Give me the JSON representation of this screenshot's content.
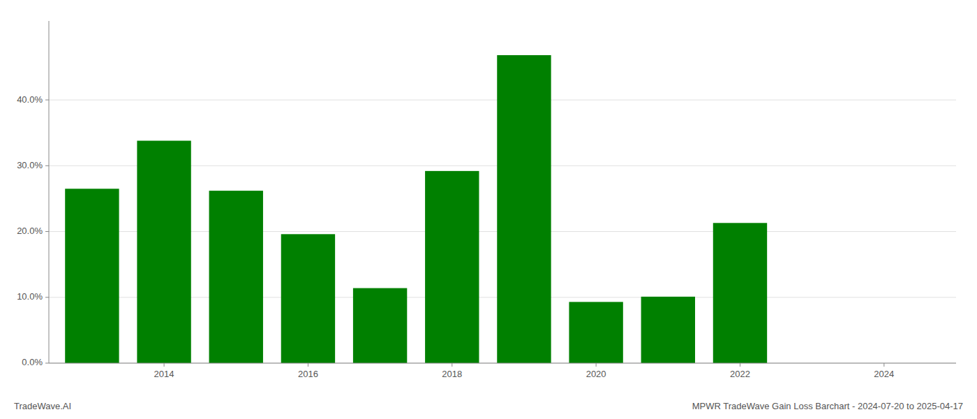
{
  "chart_data": {
    "type": "bar",
    "title": "MPWR TradeWave Gain Loss Barchart - 2024-07-20 to 2025-04-17",
    "annotations": [
      "TradeWave.AI"
    ],
    "x": [
      2013,
      2014,
      2015,
      2016,
      2017,
      2018,
      2019,
      2020,
      2021,
      2022
    ],
    "values": [
      0.265,
      0.338,
      0.262,
      0.196,
      0.114,
      0.292,
      0.468,
      0.093,
      0.101,
      0.213
    ],
    "color": "#008000",
    "xlim": [
      2012.4,
      2025.0
    ],
    "xticks": [
      2014,
      2016,
      2018,
      2020,
      2022,
      2024
    ],
    "ylim": [
      0,
      0.52
    ],
    "yticks": [
      {
        "value": 0.0,
        "label": "0.0%"
      },
      {
        "value": 0.1,
        "label": "10.0%"
      },
      {
        "value": 0.2,
        "label": "20.0%"
      },
      {
        "value": 0.3,
        "label": "30.0%"
      },
      {
        "value": 0.4,
        "label": "40.0%"
      }
    ],
    "grid": true
  }
}
